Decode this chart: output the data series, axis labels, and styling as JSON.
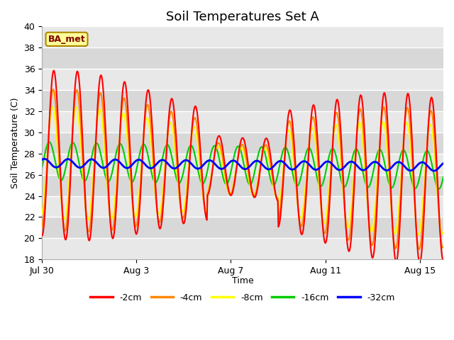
{
  "title": "Soil Temperatures Set A",
  "xlabel": "Time",
  "ylabel": "Soil Temperature (C)",
  "ylim": [
    18,
    40
  ],
  "yticks": [
    18,
    20,
    22,
    24,
    26,
    28,
    30,
    32,
    34,
    36,
    38,
    40
  ],
  "xtick_labels": [
    "Jul 30",
    "Aug 3",
    "Aug 7",
    "Aug 11",
    "Aug 15"
  ],
  "xtick_days": [
    0,
    4,
    8,
    12,
    16
  ],
  "legend_labels": [
    "-2cm",
    "-4cm",
    "-8cm",
    "-16cm",
    "-32cm"
  ],
  "line_colors": [
    "#ff0000",
    "#ff8800",
    "#ffff00",
    "#00cc00",
    "#0000ff"
  ],
  "line_widths": [
    1.5,
    1.5,
    1.5,
    1.5,
    2.0
  ],
  "annotation_text": "BA_met",
  "annotation_fg": "#800000",
  "annotation_bg": "#ffff99",
  "annotation_border": "#aa8800",
  "band_colors": [
    "#e8e8e8",
    "#d8d8d8"
  ],
  "title_fontsize": 13,
  "axis_fontsize": 9,
  "legend_fontsize": 9,
  "total_days": 17,
  "samples_per_day": 48
}
